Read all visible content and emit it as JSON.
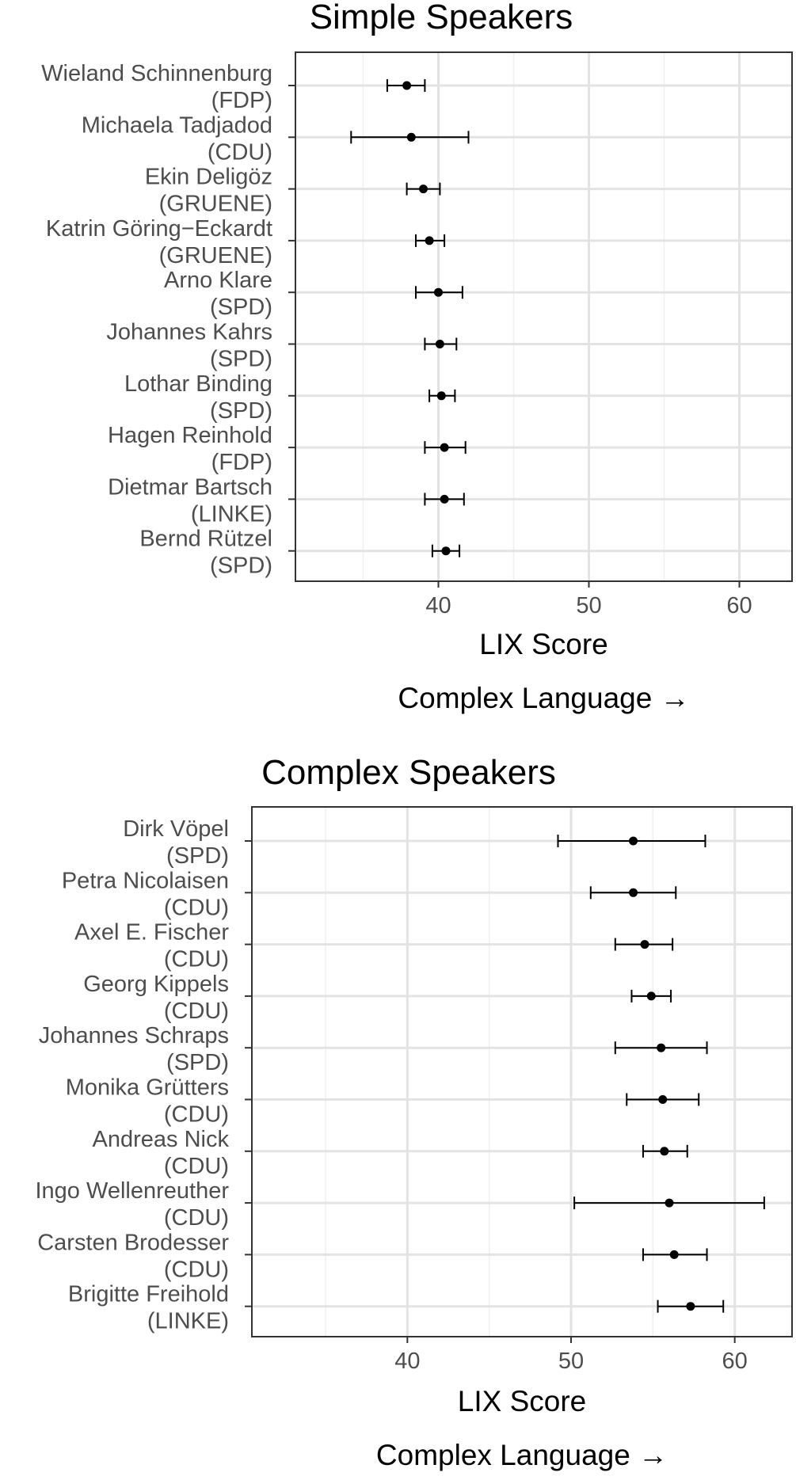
{
  "chart_data": [
    {
      "type": "errorbar",
      "title": "Simple Speakers",
      "xlabel": "LIX Score",
      "subcaption": "Complex Language →",
      "xlim": [
        30.5,
        63.5
      ],
      "xticks": [
        40,
        50,
        60
      ],
      "grid": true,
      "speakers": [
        {
          "name": "Wieland Schinnenburg",
          "party": "(FDP)",
          "mean": 37.9,
          "low": 36.6,
          "high": 39.1
        },
        {
          "name": "Michaela Tadjadod",
          "party": "(CDU)",
          "mean": 38.2,
          "low": 34.2,
          "high": 42.0
        },
        {
          "name": "Ekin Deligöz",
          "party": "(GRUENE)",
          "mean": 39.0,
          "low": 37.9,
          "high": 40.1
        },
        {
          "name": "Katrin Göring−Eckardt",
          "party": "(GRUENE)",
          "mean": 39.4,
          "low": 38.5,
          "high": 40.4
        },
        {
          "name": "Arno Klare",
          "party": "(SPD)",
          "mean": 40.0,
          "low": 38.5,
          "high": 41.6
        },
        {
          "name": "Johannes Kahrs",
          "party": "(SPD)",
          "mean": 40.1,
          "low": 39.1,
          "high": 41.2
        },
        {
          "name": "Lothar Binding",
          "party": "(SPD)",
          "mean": 40.2,
          "low": 39.4,
          "high": 41.1
        },
        {
          "name": "Hagen Reinhold",
          "party": "(FDP)",
          "mean": 40.4,
          "low": 39.1,
          "high": 41.8
        },
        {
          "name": "Dietmar Bartsch",
          "party": "(LINKE)",
          "mean": 40.4,
          "low": 39.1,
          "high": 41.7
        },
        {
          "name": "Bernd Rützel",
          "party": "(SPD)",
          "mean": 40.5,
          "low": 39.6,
          "high": 41.4
        }
      ]
    },
    {
      "type": "errorbar",
      "title": "Complex Speakers",
      "xlabel": "LIX Score",
      "subcaption": "Complex Language →",
      "xlim": [
        30.5,
        63.5
      ],
      "xticks": [
        40,
        50,
        60
      ],
      "grid": true,
      "speakers": [
        {
          "name": "Dirk Vöpel",
          "party": "(SPD)",
          "mean": 53.8,
          "low": 49.2,
          "high": 58.2
        },
        {
          "name": "Petra Nicolaisen",
          "party": "(CDU)",
          "mean": 53.8,
          "low": 51.2,
          "high": 56.4
        },
        {
          "name": "Axel E. Fischer",
          "party": "(CDU)",
          "mean": 54.5,
          "low": 52.7,
          "high": 56.2
        },
        {
          "name": "Georg Kippels",
          "party": "(CDU)",
          "mean": 54.9,
          "low": 53.7,
          "high": 56.1
        },
        {
          "name": "Johannes Schraps",
          "party": "(SPD)",
          "mean": 55.5,
          "low": 52.7,
          "high": 58.3
        },
        {
          "name": "Monika Grütters",
          "party": "(CDU)",
          "mean": 55.6,
          "low": 53.4,
          "high": 57.8
        },
        {
          "name": "Andreas Nick",
          "party": "(CDU)",
          "mean": 55.7,
          "low": 54.4,
          "high": 57.1
        },
        {
          "name": "Ingo Wellenreuther",
          "party": "(CDU)",
          "mean": 56.0,
          "low": 50.2,
          "high": 61.8
        },
        {
          "name": "Carsten Brodesser",
          "party": "(CDU)",
          "mean": 56.3,
          "low": 54.4,
          "high": 58.3
        },
        {
          "name": "Brigitte Freihold",
          "party": "(LINKE)",
          "mean": 57.3,
          "low": 55.3,
          "high": 59.3
        }
      ]
    }
  ]
}
